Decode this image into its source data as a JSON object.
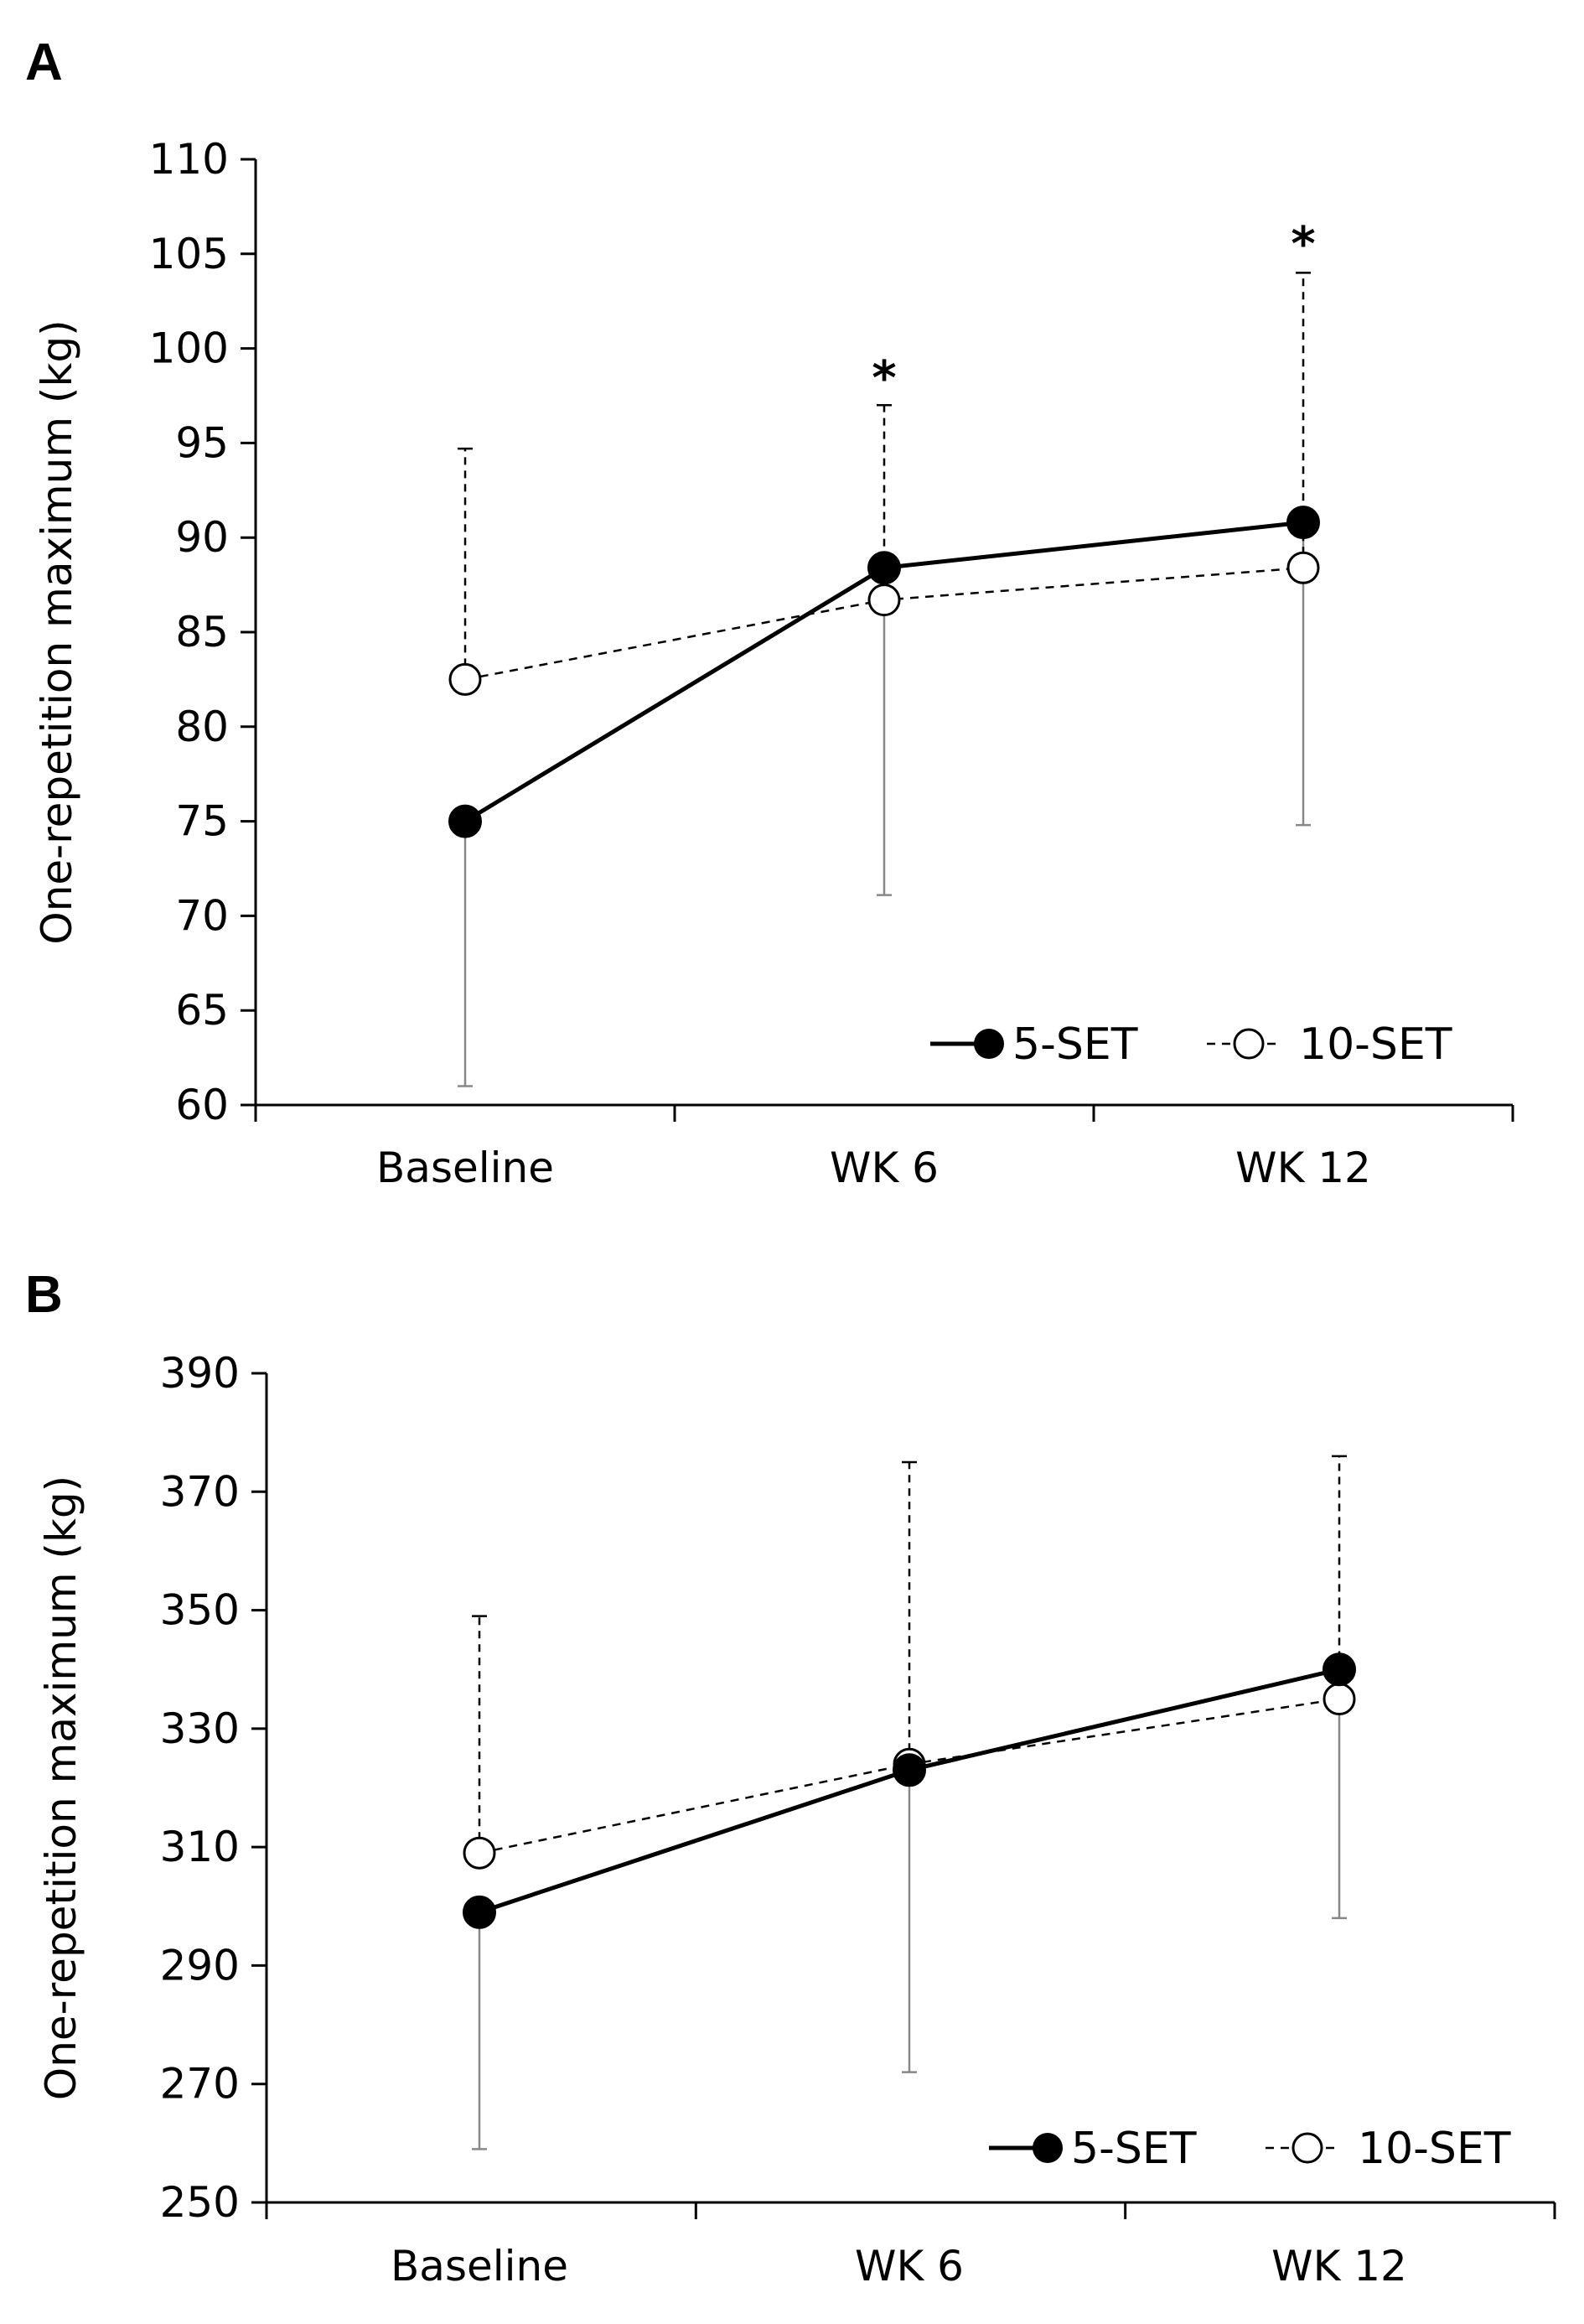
{
  "chart_data": [
    {
      "type": "line",
      "panel": "A",
      "title": "",
      "xlabel": "",
      "ylabel": "One-repetition maximum (kg)",
      "ylim": [
        60,
        110
      ],
      "yticks": [
        60,
        65,
        70,
        75,
        80,
        85,
        90,
        95,
        100,
        105,
        110
      ],
      "categories": [
        "Baseline",
        "WK 6",
        "WK 12"
      ],
      "legend": "bottom-right",
      "series": [
        {
          "name": "5-SET",
          "style": "solid",
          "marker": "filled",
          "values": [
            75.0,
            88.4,
            90.8
          ],
          "error_low": [
            14.0,
            17.3,
            16.0
          ]
        },
        {
          "name": "10-SET",
          "style": "dashed",
          "marker": "open",
          "values": [
            82.5,
            86.7,
            88.4
          ],
          "error_high": [
            12.2,
            10.3,
            15.6
          ]
        }
      ],
      "annotations": [
        {
          "category": "WK 6",
          "text": "*"
        },
        {
          "category": "WK 12",
          "text": "*"
        }
      ]
    },
    {
      "type": "line",
      "panel": "B",
      "title": "",
      "xlabel": "",
      "ylabel": "One-repetition maximum (kg)",
      "ylim": [
        250,
        390
      ],
      "yticks": [
        250,
        270,
        290,
        310,
        330,
        350,
        370,
        390
      ],
      "categories": [
        "Baseline",
        "WK 6",
        "WK 12"
      ],
      "legend": "bottom-right",
      "series": [
        {
          "name": "5-SET",
          "style": "solid",
          "marker": "filled",
          "values": [
            299,
            323,
            340
          ],
          "error_low": [
            40,
            51,
            42
          ]
        },
        {
          "name": "10-SET",
          "style": "dashed",
          "marker": "open",
          "values": [
            309,
            324,
            335
          ],
          "error_high": [
            40,
            51,
            41
          ]
        }
      ],
      "annotations": []
    }
  ]
}
